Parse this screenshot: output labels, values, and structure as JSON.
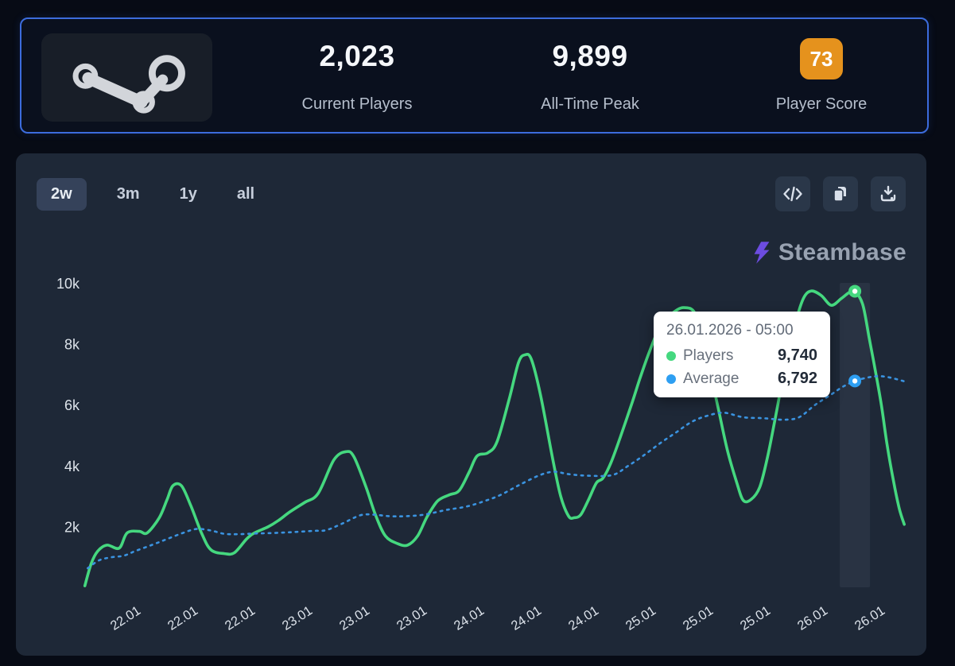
{
  "stats_card": {
    "current_players": {
      "value": "2,023",
      "label": "Current Players"
    },
    "all_time_peak": {
      "value": "9,899",
      "label": "All-Time Peak"
    },
    "player_score": {
      "value": "73",
      "label": "Player Score",
      "badge_color": "#e5921d"
    }
  },
  "chart_panel": {
    "ranges": [
      {
        "label": "2w",
        "active": true
      },
      {
        "label": "3m",
        "active": false
      },
      {
        "label": "1y",
        "active": false
      },
      {
        "label": "all",
        "active": false
      }
    ],
    "icon_buttons": [
      "code-export",
      "copy",
      "download"
    ],
    "watermark": {
      "brand": "Steambase",
      "icon_color": "#6c4ce0"
    }
  },
  "tooltip": {
    "date": "26.01.2026 - 05:00",
    "rows": [
      {
        "label": "Players",
        "value": "9,740",
        "color": "#45d87f"
      },
      {
        "label": "Average",
        "value": "6,792",
        "color": "#2e9ff2"
      }
    ]
  },
  "chart_data": {
    "type": "line",
    "x_unit": "hours since 22.01 00:00",
    "ylim": [
      0,
      10400
    ],
    "grid": false,
    "y_ticks": [
      {
        "v": 10000,
        "label": "10k"
      },
      {
        "v": 8000,
        "label": "8k"
      },
      {
        "v": 6000,
        "label": "6k"
      },
      {
        "v": 4000,
        "label": "4k"
      },
      {
        "v": 2000,
        "label": "2k"
      }
    ],
    "x_ticks": [
      {
        "t": 0,
        "label": "22.01"
      },
      {
        "t": 8,
        "label": "22.01"
      },
      {
        "t": 16,
        "label": "22.01"
      },
      {
        "t": 24,
        "label": "23.01"
      },
      {
        "t": 32,
        "label": "23.01"
      },
      {
        "t": 40,
        "label": "23.01"
      },
      {
        "t": 48,
        "label": "24.01"
      },
      {
        "t": 56,
        "label": "24.01"
      },
      {
        "t": 64,
        "label": "24.01"
      },
      {
        "t": 72,
        "label": "25.01"
      },
      {
        "t": 80,
        "label": "25.01"
      },
      {
        "t": 88,
        "label": "25.01"
      },
      {
        "t": 96,
        "label": "26.01"
      },
      {
        "t": 104,
        "label": "26.01"
      }
    ],
    "highlight": {
      "t": 101.9,
      "players": 9740,
      "average": 6792
    },
    "series": [
      {
        "name": "Players",
        "color": "#45d87f",
        "style": "solid",
        "points": [
          [
            -5.7,
            60
          ],
          [
            -4.8,
            800
          ],
          [
            -3.9,
            1200
          ],
          [
            -2.6,
            1400
          ],
          [
            -0.9,
            1300
          ],
          [
            0.2,
            1800
          ],
          [
            1.9,
            1850
          ],
          [
            3,
            1800
          ],
          [
            4.7,
            2300
          ],
          [
            5.8,
            2900
          ],
          [
            6.6,
            3350
          ],
          [
            7.8,
            3350
          ],
          [
            9.1,
            2700
          ],
          [
            10.6,
            1800
          ],
          [
            11.9,
            1250
          ],
          [
            13.8,
            1120
          ],
          [
            15.2,
            1150
          ],
          [
            16.9,
            1600
          ],
          [
            18,
            1800
          ],
          [
            19.9,
            2000
          ],
          [
            21.3,
            2200
          ],
          [
            23,
            2500
          ],
          [
            25,
            2800
          ],
          [
            26.9,
            3100
          ],
          [
            29.1,
            4200
          ],
          [
            30.8,
            4470
          ],
          [
            31.9,
            4300
          ],
          [
            33.6,
            3300
          ],
          [
            34.9,
            2400
          ],
          [
            36.3,
            1700
          ],
          [
            38,
            1450
          ],
          [
            39.4,
            1400
          ],
          [
            40.8,
            1700
          ],
          [
            42.1,
            2320
          ],
          [
            43.6,
            2850
          ],
          [
            45.2,
            3050
          ],
          [
            46.6,
            3190
          ],
          [
            48,
            3800
          ],
          [
            49.1,
            4330
          ],
          [
            50.6,
            4430
          ],
          [
            51.9,
            4800
          ],
          [
            53.6,
            6200
          ],
          [
            54.9,
            7400
          ],
          [
            55.8,
            7650
          ],
          [
            56.7,
            7500
          ],
          [
            58,
            6300
          ],
          [
            59.7,
            4200
          ],
          [
            60.8,
            3000
          ],
          [
            61.9,
            2350
          ],
          [
            62.7,
            2300
          ],
          [
            63.6,
            2400
          ],
          [
            64.7,
            2900
          ],
          [
            65.8,
            3450
          ],
          [
            66.7,
            3600
          ],
          [
            67.8,
            4100
          ],
          [
            69.1,
            4930
          ],
          [
            70.8,
            6100
          ],
          [
            71.9,
            6900
          ],
          [
            73.2,
            7760
          ],
          [
            74.7,
            8600
          ],
          [
            76.3,
            9000
          ],
          [
            78,
            9200
          ],
          [
            79.7,
            8950
          ],
          [
            81.3,
            7500
          ],
          [
            82.8,
            5900
          ],
          [
            84.1,
            4500
          ],
          [
            85.4,
            3450
          ],
          [
            86.3,
            2870
          ],
          [
            87.4,
            2900
          ],
          [
            88.6,
            3300
          ],
          [
            89.7,
            4300
          ],
          [
            90.8,
            5600
          ],
          [
            92.1,
            7200
          ],
          [
            93.6,
            8700
          ],
          [
            94.7,
            9500
          ],
          [
            95.8,
            9750
          ],
          [
            97.2,
            9600
          ],
          [
            98.6,
            9280
          ],
          [
            100,
            9500
          ],
          [
            101.1,
            9700
          ],
          [
            101.9,
            9740
          ],
          [
            103,
            9300
          ],
          [
            103.9,
            8200
          ],
          [
            104.7,
            7200
          ],
          [
            105.6,
            6000
          ],
          [
            106.4,
            4700
          ],
          [
            107.3,
            3500
          ],
          [
            108.1,
            2600
          ],
          [
            108.8,
            2080
          ]
        ]
      },
      {
        "name": "Average",
        "color": "#3a93e0",
        "style": "dashed",
        "points": [
          [
            -5.3,
            640
          ],
          [
            -3.7,
            900
          ],
          [
            -2,
            1000
          ],
          [
            -0.3,
            1050
          ],
          [
            1.3,
            1200
          ],
          [
            3.6,
            1400
          ],
          [
            5.8,
            1600
          ],
          [
            8,
            1800
          ],
          [
            9.9,
            1930
          ],
          [
            11.9,
            1880
          ],
          [
            13.8,
            1770
          ],
          [
            15.8,
            1760
          ],
          [
            18,
            1780
          ],
          [
            20.8,
            1800
          ],
          [
            23.6,
            1830
          ],
          [
            26.3,
            1870
          ],
          [
            28,
            1890
          ],
          [
            30.2,
            2100
          ],
          [
            32.8,
            2380
          ],
          [
            34.7,
            2400
          ],
          [
            36.9,
            2350
          ],
          [
            39.1,
            2350
          ],
          [
            41.7,
            2400
          ],
          [
            44.7,
            2550
          ],
          [
            47.7,
            2670
          ],
          [
            50.2,
            2850
          ],
          [
            52.4,
            3050
          ],
          [
            55.2,
            3400
          ],
          [
            58,
            3710
          ],
          [
            59.9,
            3810
          ],
          [
            61.9,
            3730
          ],
          [
            64.7,
            3680
          ],
          [
            68,
            3700
          ],
          [
            70.2,
            4000
          ],
          [
            72.4,
            4350
          ],
          [
            74.7,
            4750
          ],
          [
            76.9,
            5100
          ],
          [
            79.1,
            5450
          ],
          [
            81.3,
            5650
          ],
          [
            83.6,
            5750
          ],
          [
            86.3,
            5600
          ],
          [
            89.1,
            5570
          ],
          [
            91.9,
            5520
          ],
          [
            94.1,
            5600
          ],
          [
            96.3,
            6000
          ],
          [
            98.6,
            6350
          ],
          [
            100.2,
            6600
          ],
          [
            101.9,
            6792
          ],
          [
            103.6,
            6900
          ],
          [
            105.2,
            6950
          ],
          [
            106.9,
            6900
          ],
          [
            108.8,
            6780
          ]
        ]
      }
    ]
  }
}
